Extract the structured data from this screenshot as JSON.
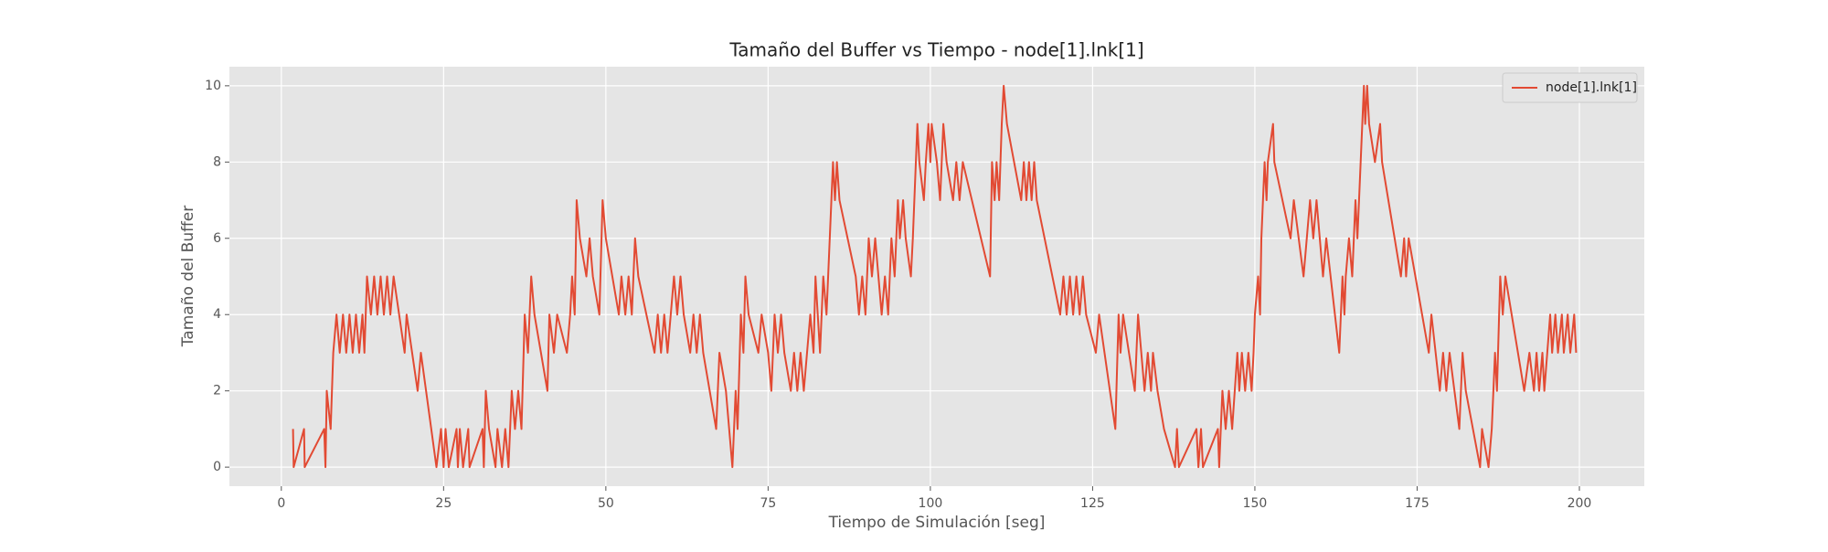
{
  "chart_data": {
    "type": "line",
    "title": "Tamaño del Buffer vs Tiempo - node[1].lnk[1]",
    "xlabel": "Tiempo de Simulación [seg]",
    "ylabel": "Tamaño del Buffer",
    "x": [
      1.8,
      1.9,
      3.5,
      3.6,
      6.6,
      6.8,
      7.0,
      7.6,
      8.0,
      8.5,
      9.0,
      9.5,
      10.0,
      10.5,
      11.0,
      11.5,
      12.0,
      12.5,
      12.8,
      13.2,
      13.8,
      14.3,
      14.8,
      15.3,
      15.8,
      16.3,
      16.8,
      17.3,
      19.0,
      19.3,
      21.0,
      21.5,
      23.9,
      24.6,
      25.0,
      25.3,
      25.8,
      27.0,
      27.2,
      27.5,
      28.0,
      28.8,
      29.0,
      31.0,
      31.2,
      31.5,
      32.0,
      33.0,
      33.3,
      34.0,
      34.5,
      35.0,
      35.5,
      36.0,
      36.5,
      37.0,
      37.5,
      38.0,
      38.5,
      39.0,
      41.0,
      41.3,
      42.0,
      42.5,
      44.0,
      44.5,
      44.8,
      45.2,
      45.5,
      46.0,
      47.0,
      47.5,
      48.0,
      49.0,
      49.5,
      50.0,
      52.0,
      52.4,
      53.0,
      53.5,
      54.0,
      54.5,
      55.0,
      57.5,
      58.0,
      58.5,
      59.0,
      59.5,
      60.0,
      60.5,
      61.0,
      61.5,
      62.0,
      63.0,
      63.5,
      64.0,
      64.5,
      65.0,
      67.0,
      67.5,
      68.5,
      69.5,
      70.0,
      70.3,
      70.8,
      71.2,
      71.5,
      72.0,
      73.5,
      74.0,
      75.0,
      75.5,
      76.0,
      76.5,
      77.0,
      77.5,
      78.5,
      79.0,
      79.5,
      80.0,
      80.5,
      81.0,
      81.5,
      82.0,
      82.3,
      83.0,
      83.5,
      84.0,
      84.5,
      85.0,
      85.3,
      85.6,
      86.0,
      88.5,
      89.0,
      89.5,
      90.0,
      90.5,
      91.0,
      91.5,
      92.5,
      93.0,
      93.5,
      94.0,
      94.5,
      95.0,
      95.3,
      95.8,
      96.2,
      97.0,
      97.3,
      98.0,
      98.3,
      99.0,
      99.3,
      99.7,
      100.0,
      100.2,
      101.0,
      101.5,
      102.0,
      102.5,
      103.5,
      104.0,
      104.5,
      105.0,
      109.2,
      109.5,
      109.9,
      110.2,
      110.6,
      111.0,
      111.3,
      111.8,
      114.0,
      114.4,
      114.8,
      115.2,
      115.6,
      116.0,
      116.4,
      120.0,
      120.5,
      121.0,
      121.5,
      122.0,
      122.5,
      123.0,
      123.5,
      124.0,
      125.5,
      126.0,
      128.5,
      129.0,
      129.3,
      129.7,
      131.5,
      132.0,
      133.0,
      133.5,
      134.0,
      134.3,
      135.0,
      136.0,
      137.7,
      138.0,
      138.3,
      141.0,
      141.3,
      141.7,
      142.0,
      144.3,
      144.5,
      145.0,
      145.5,
      146.0,
      146.5,
      147.3,
      147.6,
      148.0,
      148.5,
      149.0,
      149.5,
      149.8,
      150.0,
      150.5,
      150.8,
      151.0,
      151.5,
      151.8,
      152.0,
      152.8,
      153.0,
      155.5,
      156.0,
      157.5,
      158.0,
      158.5,
      159.0,
      159.5,
      160.5,
      161.0,
      163.0,
      163.5,
      163.8,
      164.0,
      164.5,
      165.0,
      165.5,
      165.8,
      166.3,
      166.8,
      167.0,
      167.3,
      167.6,
      168.5,
      169.3,
      169.6,
      172.5,
      173.0,
      173.3,
      173.7,
      176.8,
      177.2,
      178.5,
      179.0,
      179.5,
      180.0,
      181.5,
      182.0,
      182.5,
      184.7,
      185.0,
      186.0,
      186.5,
      187.0,
      187.3,
      187.8,
      188.2,
      188.6,
      191.5,
      192.3,
      193.0,
      193.4,
      193.8,
      194.3,
      194.6,
      195.5,
      195.8,
      196.3,
      196.7,
      197.3,
      197.6,
      198.2,
      198.6,
      199.2,
      199.5
    ],
    "series": [
      {
        "name": "node[1].lnk[1]",
        "color": "#E24A33",
        "values": [
          1,
          0,
          1,
          0,
          1,
          0,
          2,
          1,
          3,
          4,
          3,
          4,
          3,
          4,
          3,
          4,
          3,
          4,
          3,
          5,
          4,
          5,
          4,
          5,
          4,
          5,
          4,
          5,
          3,
          4,
          2,
          3,
          0,
          1,
          0,
          1,
          0,
          1,
          0,
          1,
          0,
          1,
          0,
          1,
          0,
          2,
          1,
          0,
          1,
          0,
          1,
          0,
          2,
          1,
          2,
          1,
          4,
          3,
          5,
          4,
          2,
          4,
          3,
          4,
          3,
          4,
          5,
          4,
          7,
          6,
          5,
          6,
          5,
          4,
          7,
          6,
          4,
          5,
          4,
          5,
          4,
          6,
          5,
          3,
          4,
          3,
          4,
          3,
          4,
          5,
          4,
          5,
          4,
          3,
          4,
          3,
          4,
          3,
          1,
          3,
          2,
          0,
          2,
          1,
          4,
          3,
          5,
          4,
          3,
          4,
          3,
          2,
          4,
          3,
          4,
          3,
          2,
          3,
          2,
          3,
          2,
          3,
          4,
          3,
          5,
          3,
          5,
          4,
          6,
          8,
          7,
          8,
          7,
          5,
          4,
          5,
          4,
          6,
          5,
          6,
          4,
          5,
          4,
          6,
          5,
          7,
          6,
          7,
          6,
          5,
          6,
          9,
          8,
          7,
          8,
          9,
          8,
          9,
          8,
          7,
          9,
          8,
          7,
          8,
          7,
          8,
          5,
          8,
          7,
          8,
          7,
          9,
          10,
          9,
          7,
          8,
          7,
          8,
          7,
          8,
          7,
          4,
          5,
          4,
          5,
          4,
          5,
          4,
          5,
          4,
          3,
          4,
          1,
          4,
          3,
          4,
          2,
          4,
          2,
          3,
          2,
          3,
          2,
          1,
          0,
          1,
          0,
          1,
          0,
          1,
          0,
          1,
          0,
          2,
          1,
          2,
          1,
          3,
          2,
          3,
          2,
          3,
          2,
          3,
          4,
          5,
          4,
          6,
          8,
          7,
          8,
          9,
          8,
          6,
          7,
          5,
          6,
          7,
          6,
          7,
          5,
          6,
          3,
          5,
          4,
          5,
          6,
          5,
          7,
          6,
          8,
          10,
          9,
          10,
          9,
          8,
          9,
          8,
          5,
          6,
          5,
          6,
          3,
          4,
          2,
          3,
          2,
          3,
          1,
          3,
          2,
          0,
          1,
          0,
          1,
          3,
          2,
          5,
          4,
          5,
          2,
          3,
          2,
          3,
          2,
          3,
          2,
          4,
          3,
          4,
          3,
          4,
          3,
          4,
          3,
          4,
          3
        ]
      }
    ],
    "xlim": [
      -8,
      210
    ],
    "ylim": [
      -0.5,
      10.5
    ],
    "xticks": [
      0,
      25,
      50,
      75,
      100,
      125,
      150,
      175,
      200
    ],
    "yticks": [
      0,
      2,
      4,
      6,
      8,
      10
    ],
    "grid": true,
    "legend": "upper right"
  }
}
